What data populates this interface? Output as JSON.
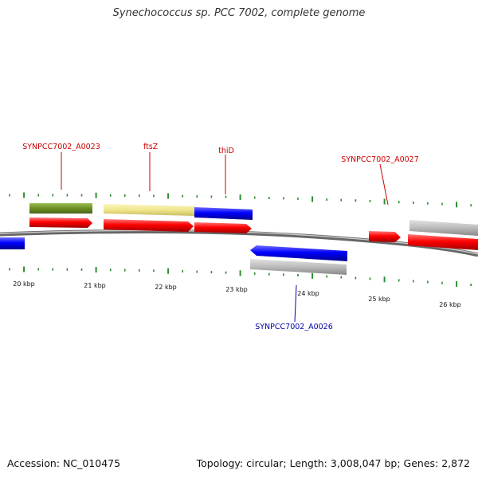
{
  "title": "Synechococcus sp. PCC 7002, complete genome",
  "accession_text": "Accession: NC_010475",
  "summary_text": "Topology: circular; Length: 3,008,047 bp; Genes: 2,872",
  "colors": {
    "backbone": "#808080",
    "tick": "#2e8b2e",
    "forward_label": "#cc0000",
    "reverse_label": "#0000aa",
    "cds_red": "#ff0000",
    "gene_green": "#6b8e23",
    "gene_khaki": "#f0e68c",
    "gene_blue": "#0000ff",
    "gene_gray": "#bbbbbb"
  },
  "kbp_labels": [
    "20 kbp",
    "21 kbp",
    "22 kbp",
    "23 kbp",
    "24 kbp",
    "25 kbp",
    "26 kbp"
  ],
  "gene_labels": [
    {
      "text": "SYNPCC7002_A0023",
      "strand": "forward"
    },
    {
      "text": "ftsZ",
      "strand": "forward"
    },
    {
      "text": "thiD",
      "strand": "forward"
    },
    {
      "text": "SYNPCC7002_A0027",
      "strand": "forward"
    },
    {
      "text": "SYNPCC7002_A0026",
      "strand": "reverse"
    }
  ]
}
